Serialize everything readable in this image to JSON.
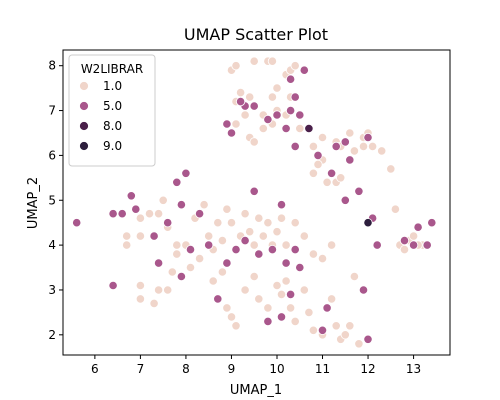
{
  "chart_data": {
    "type": "scatter",
    "title": "UMAP Scatter Plot",
    "xlabel": "UMAP_1",
    "ylabel": "UMAP_2",
    "xlim": [
      5.3,
      13.8
    ],
    "ylim": [
      1.55,
      8.35
    ],
    "xticks": [
      "6",
      "7",
      "8",
      "9",
      "10",
      "11",
      "12",
      "13"
    ],
    "yticks": [
      "2",
      "3",
      "4",
      "5",
      "6",
      "7",
      "8"
    ],
    "grid": false,
    "legend": {
      "title": "W2LIBRAR",
      "placement": "upper-left",
      "entries": [
        {
          "label": "1.0",
          "color": "#f0d5ca"
        },
        {
          "label": "5.0",
          "color": "#a9578c"
        },
        {
          "label": "8.0",
          "color": "#4a1f4a"
        },
        {
          "label": "9.0",
          "color": "#2d1e3d"
        }
      ]
    },
    "series": [
      {
        "name": "1.0",
        "color": "#f0d5ca",
        "points": [
          [
            9.0,
            7.9
          ],
          [
            9.1,
            8.0
          ],
          [
            9.5,
            8.1
          ],
          [
            9.8,
            8.1
          ],
          [
            9.9,
            8.1
          ],
          [
            10.2,
            7.8
          ],
          [
            10.3,
            7.9
          ],
          [
            10.4,
            8.0
          ],
          [
            10.0,
            7.5
          ],
          [
            10.3,
            7.3
          ],
          [
            9.9,
            7.3
          ],
          [
            9.2,
            7.4
          ],
          [
            9.1,
            7.2
          ],
          [
            9.4,
            7.3
          ],
          [
            9.1,
            6.7
          ],
          [
            9.3,
            6.9
          ],
          [
            9.4,
            6.4
          ],
          [
            9.5,
            6.3
          ],
          [
            9.7,
            6.9
          ],
          [
            10.0,
            7.0
          ],
          [
            9.9,
            6.7
          ],
          [
            10.2,
            6.9
          ],
          [
            10.5,
            6.6
          ],
          [
            9.7,
            6.6
          ],
          [
            10.8,
            6.2
          ],
          [
            11.0,
            6.4
          ],
          [
            11.3,
            6.3
          ],
          [
            11.6,
            6.5
          ],
          [
            11.9,
            6.4
          ],
          [
            12.0,
            6.5
          ],
          [
            11.4,
            6.2
          ],
          [
            11.0,
            5.9
          ],
          [
            10.9,
            5.8
          ],
          [
            10.8,
            5.6
          ],
          [
            11.1,
            5.4
          ],
          [
            11.3,
            5.4
          ],
          [
            11.4,
            5.5
          ],
          [
            11.7,
            6.1
          ],
          [
            11.9,
            6.2
          ],
          [
            12.1,
            6.2
          ],
          [
            12.3,
            6.1
          ],
          [
            12.5,
            5.7
          ],
          [
            12.6,
            4.8
          ],
          [
            12.7,
            4.0
          ],
          [
            12.9,
            4.1
          ],
          [
            13.0,
            4.2
          ],
          [
            13.2,
            4.0
          ],
          [
            12.8,
            3.9
          ],
          [
            13.1,
            4.0
          ],
          [
            6.7,
            4.2
          ],
          [
            6.7,
            4.0
          ],
          [
            7.0,
            4.6
          ],
          [
            7.0,
            4.2
          ],
          [
            7.2,
            4.7
          ],
          [
            7.4,
            4.7
          ],
          [
            7.5,
            5.0
          ],
          [
            7.6,
            4.4
          ],
          [
            7.8,
            4.0
          ],
          [
            8.0,
            4.0
          ],
          [
            8.2,
            4.6
          ],
          [
            8.4,
            4.9
          ],
          [
            8.5,
            4.2
          ],
          [
            8.6,
            3.9
          ],
          [
            8.7,
            4.5
          ],
          [
            8.8,
            4.1
          ],
          [
            8.9,
            4.8
          ],
          [
            9.0,
            4.5
          ],
          [
            9.2,
            4.2
          ],
          [
            9.3,
            4.7
          ],
          [
            9.4,
            4.3
          ],
          [
            9.5,
            4.0
          ],
          [
            9.6,
            4.6
          ],
          [
            9.7,
            4.2
          ],
          [
            9.8,
            4.5
          ],
          [
            9.9,
            4.0
          ],
          [
            10.0,
            4.3
          ],
          [
            10.1,
            4.6
          ],
          [
            10.2,
            4.0
          ],
          [
            10.4,
            4.5
          ],
          [
            10.6,
            4.2
          ],
          [
            10.8,
            3.8
          ],
          [
            11.0,
            3.7
          ],
          [
            11.2,
            4.0
          ],
          [
            7.0,
            3.1
          ],
          [
            7.0,
            2.8
          ],
          [
            7.3,
            2.7
          ],
          [
            7.4,
            3.0
          ],
          [
            7.6,
            3.0
          ],
          [
            7.7,
            3.4
          ],
          [
            7.8,
            3.8
          ],
          [
            8.1,
            3.5
          ],
          [
            8.3,
            3.7
          ],
          [
            8.6,
            3.2
          ],
          [
            8.7,
            2.8
          ],
          [
            8.8,
            3.4
          ],
          [
            8.9,
            2.6
          ],
          [
            9.0,
            2.4
          ],
          [
            9.1,
            2.2
          ],
          [
            9.3,
            3.0
          ],
          [
            9.5,
            3.3
          ],
          [
            9.6,
            2.8
          ],
          [
            9.8,
            2.6
          ],
          [
            10.0,
            3.1
          ],
          [
            10.1,
            2.9
          ],
          [
            10.2,
            3.2
          ],
          [
            10.3,
            2.6
          ],
          [
            10.4,
            2.3
          ],
          [
            10.6,
            3.0
          ],
          [
            10.7,
            2.5
          ],
          [
            10.8,
            2.1
          ],
          [
            11.0,
            2.0
          ],
          [
            11.2,
            2.8
          ],
          [
            11.3,
            2.2
          ],
          [
            11.4,
            1.9
          ],
          [
            11.6,
            2.2
          ],
          [
            11.7,
            3.3
          ],
          [
            11.8,
            1.8
          ],
          [
            11.5,
            2.0
          ]
        ]
      },
      {
        "name": "5.0",
        "color": "#a9578c",
        "points": [
          [
            5.6,
            4.5
          ],
          [
            6.4,
            4.7
          ],
          [
            6.4,
            3.1
          ],
          [
            6.6,
            4.7
          ],
          [
            6.8,
            5.1
          ],
          [
            6.9,
            4.8
          ],
          [
            7.3,
            4.2
          ],
          [
            7.4,
            3.6
          ],
          [
            7.6,
            4.5
          ],
          [
            7.8,
            5.4
          ],
          [
            7.9,
            4.9
          ],
          [
            8.0,
            5.6
          ],
          [
            7.9,
            3.3
          ],
          [
            8.1,
            3.9
          ],
          [
            8.3,
            4.7
          ],
          [
            8.5,
            4.0
          ],
          [
            8.7,
            2.8
          ],
          [
            8.9,
            3.6
          ],
          [
            9.1,
            3.9
          ],
          [
            9.3,
            4.1
          ],
          [
            9.5,
            5.2
          ],
          [
            9.6,
            3.8
          ],
          [
            9.9,
            3.9
          ],
          [
            10.1,
            4.9
          ],
          [
            10.2,
            3.6
          ],
          [
            10.4,
            3.9
          ],
          [
            10.5,
            3.5
          ],
          [
            10.3,
            2.9
          ],
          [
            9.8,
            2.3
          ],
          [
            10.1,
            2.4
          ],
          [
            11.0,
            2.1
          ],
          [
            11.1,
            2.6
          ],
          [
            12.0,
            1.9
          ],
          [
            11.9,
            3.0
          ],
          [
            8.9,
            6.7
          ],
          [
            9.0,
            6.5
          ],
          [
            9.3,
            7.1
          ],
          [
            9.2,
            7.2
          ],
          [
            9.5,
            7.1
          ],
          [
            9.8,
            6.8
          ],
          [
            10.0,
            6.9
          ],
          [
            10.4,
            7.3
          ],
          [
            10.3,
            7.0
          ],
          [
            10.3,
            7.7
          ],
          [
            10.6,
            7.9
          ],
          [
            10.2,
            6.6
          ],
          [
            10.5,
            6.9
          ],
          [
            10.4,
            6.2
          ],
          [
            10.9,
            6.0
          ],
          [
            11.3,
            6.2
          ],
          [
            11.5,
            6.3
          ],
          [
            11.6,
            5.9
          ],
          [
            12.0,
            6.4
          ],
          [
            11.2,
            5.6
          ],
          [
            11.5,
            5.0
          ],
          [
            11.8,
            5.2
          ],
          [
            12.1,
            4.6
          ],
          [
            12.2,
            4.0
          ],
          [
            12.8,
            4.1
          ],
          [
            13.1,
            4.4
          ],
          [
            13.3,
            4.0
          ],
          [
            13.4,
            4.5
          ],
          [
            13.0,
            4.0
          ]
        ]
      },
      {
        "name": "8.0",
        "color": "#4a1f4a",
        "points": [
          [
            10.7,
            6.6
          ]
        ]
      },
      {
        "name": "9.0",
        "color": "#2d1e3d",
        "points": [
          [
            12.0,
            4.5
          ]
        ]
      }
    ]
  }
}
